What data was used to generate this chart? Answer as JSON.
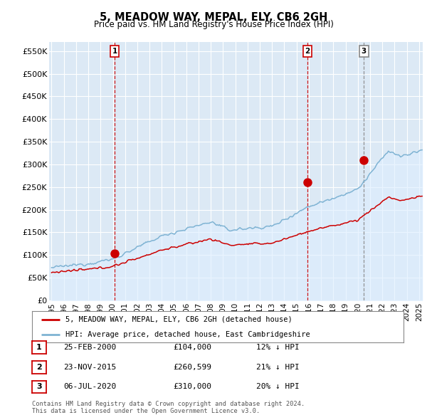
{
  "title": "5, MEADOW WAY, MEPAL, ELY, CB6 2GH",
  "subtitle": "Price paid vs. HM Land Registry's House Price Index (HPI)",
  "ylabel_ticks": [
    "£0",
    "£50K",
    "£100K",
    "£150K",
    "£200K",
    "£250K",
    "£300K",
    "£350K",
    "£400K",
    "£450K",
    "£500K",
    "£550K"
  ],
  "ytick_values": [
    0,
    50000,
    100000,
    150000,
    200000,
    250000,
    300000,
    350000,
    400000,
    450000,
    500000,
    550000
  ],
  "ylim": [
    0,
    570000
  ],
  "xlim_start": 1994.8,
  "xlim_end": 2025.3,
  "sales": [
    {
      "year": 2000.15,
      "price": 104000,
      "label": "1",
      "vline_color": "#cc0000",
      "vline_style": "--"
    },
    {
      "year": 2015.9,
      "price": 260599,
      "label": "2",
      "vline_color": "#cc0000",
      "vline_style": "--"
    },
    {
      "year": 2020.5,
      "price": 310000,
      "label": "3",
      "vline_color": "#888888",
      "vline_style": "--"
    }
  ],
  "sale_color": "#cc0000",
  "hpi_color": "#7fb3d3",
  "hpi_fill_color": "#ddeeff",
  "legend_sale_label": "5, MEADOW WAY, MEPAL, ELY, CB6 2GH (detached house)",
  "legend_hpi_label": "HPI: Average price, detached house, East Cambridgeshire",
  "table_rows": [
    {
      "num": "1",
      "date": "25-FEB-2000",
      "price": "£104,000",
      "note": "12% ↓ HPI"
    },
    {
      "num": "2",
      "date": "23-NOV-2015",
      "price": "£260,599",
      "note": "21% ↓ HPI"
    },
    {
      "num": "3",
      "date": "06-JUL-2020",
      "price": "£310,000",
      "note": "20% ↓ HPI"
    }
  ],
  "footer": "Contains HM Land Registry data © Crown copyright and database right 2024.\nThis data is licensed under the Open Government Licence v3.0.",
  "background_color": "#ffffff",
  "plot_bg_color": "#dce9f5",
  "grid_color": "#ffffff",
  "vline_color_red": "#cc0000",
  "vline_color_gray": "#aaaaaa"
}
